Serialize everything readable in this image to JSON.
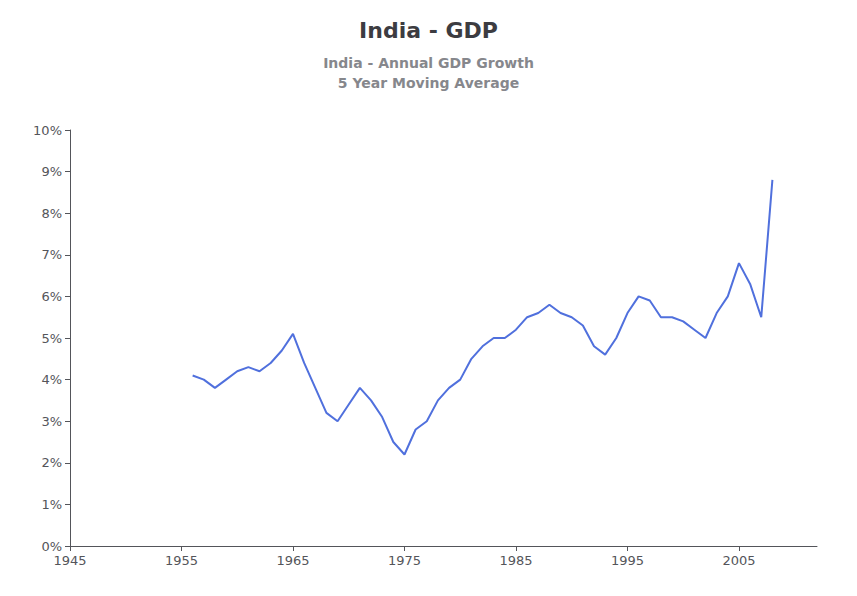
{
  "chart_data": {
    "type": "line",
    "title": "India - GDP",
    "subtitle": "India - Annual GDP Growth\n5 Year Moving Average",
    "x": [
      1956,
      1957,
      1958,
      1959,
      1960,
      1961,
      1962,
      1963,
      1964,
      1965,
      1966,
      1967,
      1968,
      1969,
      1970,
      1971,
      1972,
      1973,
      1974,
      1975,
      1976,
      1977,
      1978,
      1979,
      1980,
      1981,
      1982,
      1983,
      1984,
      1985,
      1986,
      1987,
      1988,
      1989,
      1990,
      1991,
      1992,
      1993,
      1994,
      1995,
      1996,
      1997,
      1998,
      1999,
      2000,
      2001,
      2002,
      2003,
      2004,
      2005,
      2006,
      2007,
      2008
    ],
    "values": [
      0.041,
      0.04,
      0.038,
      0.04,
      0.042,
      0.043,
      0.042,
      0.044,
      0.047,
      0.051,
      0.044,
      0.038,
      0.032,
      0.03,
      0.034,
      0.038,
      0.035,
      0.031,
      0.025,
      0.022,
      0.028,
      0.03,
      0.035,
      0.038,
      0.04,
      0.045,
      0.048,
      0.05,
      0.05,
      0.052,
      0.055,
      0.056,
      0.058,
      0.056,
      0.055,
      0.053,
      0.048,
      0.046,
      0.05,
      0.056,
      0.06,
      0.059,
      0.055,
      0.055,
      0.054,
      0.052,
      0.05,
      0.056,
      0.06,
      0.068,
      0.063,
      0.055,
      0.088
    ],
    "xlim": [
      1945,
      2012
    ],
    "xticks": [
      1945,
      1955,
      1965,
      1975,
      1985,
      1995,
      2005
    ],
    "ylim": [
      0,
      0.1
    ],
    "yticks": [
      {
        "value": 0,
        "label": "0%"
      },
      {
        "value": 0.01,
        "label": "1%"
      },
      {
        "value": 0.02,
        "label": "2%"
      },
      {
        "value": 0.03,
        "label": "3%"
      },
      {
        "value": 0.04,
        "label": "4%"
      },
      {
        "value": 0.05,
        "label": "5%"
      },
      {
        "value": 0.06,
        "label": "6%"
      },
      {
        "value": 0.07,
        "label": "7%"
      },
      {
        "value": 0.08,
        "label": "8%"
      },
      {
        "value": 0.09,
        "label": "9%"
      },
      {
        "value": 0.1,
        "label": "10%"
      }
    ],
    "grid": false
  }
}
